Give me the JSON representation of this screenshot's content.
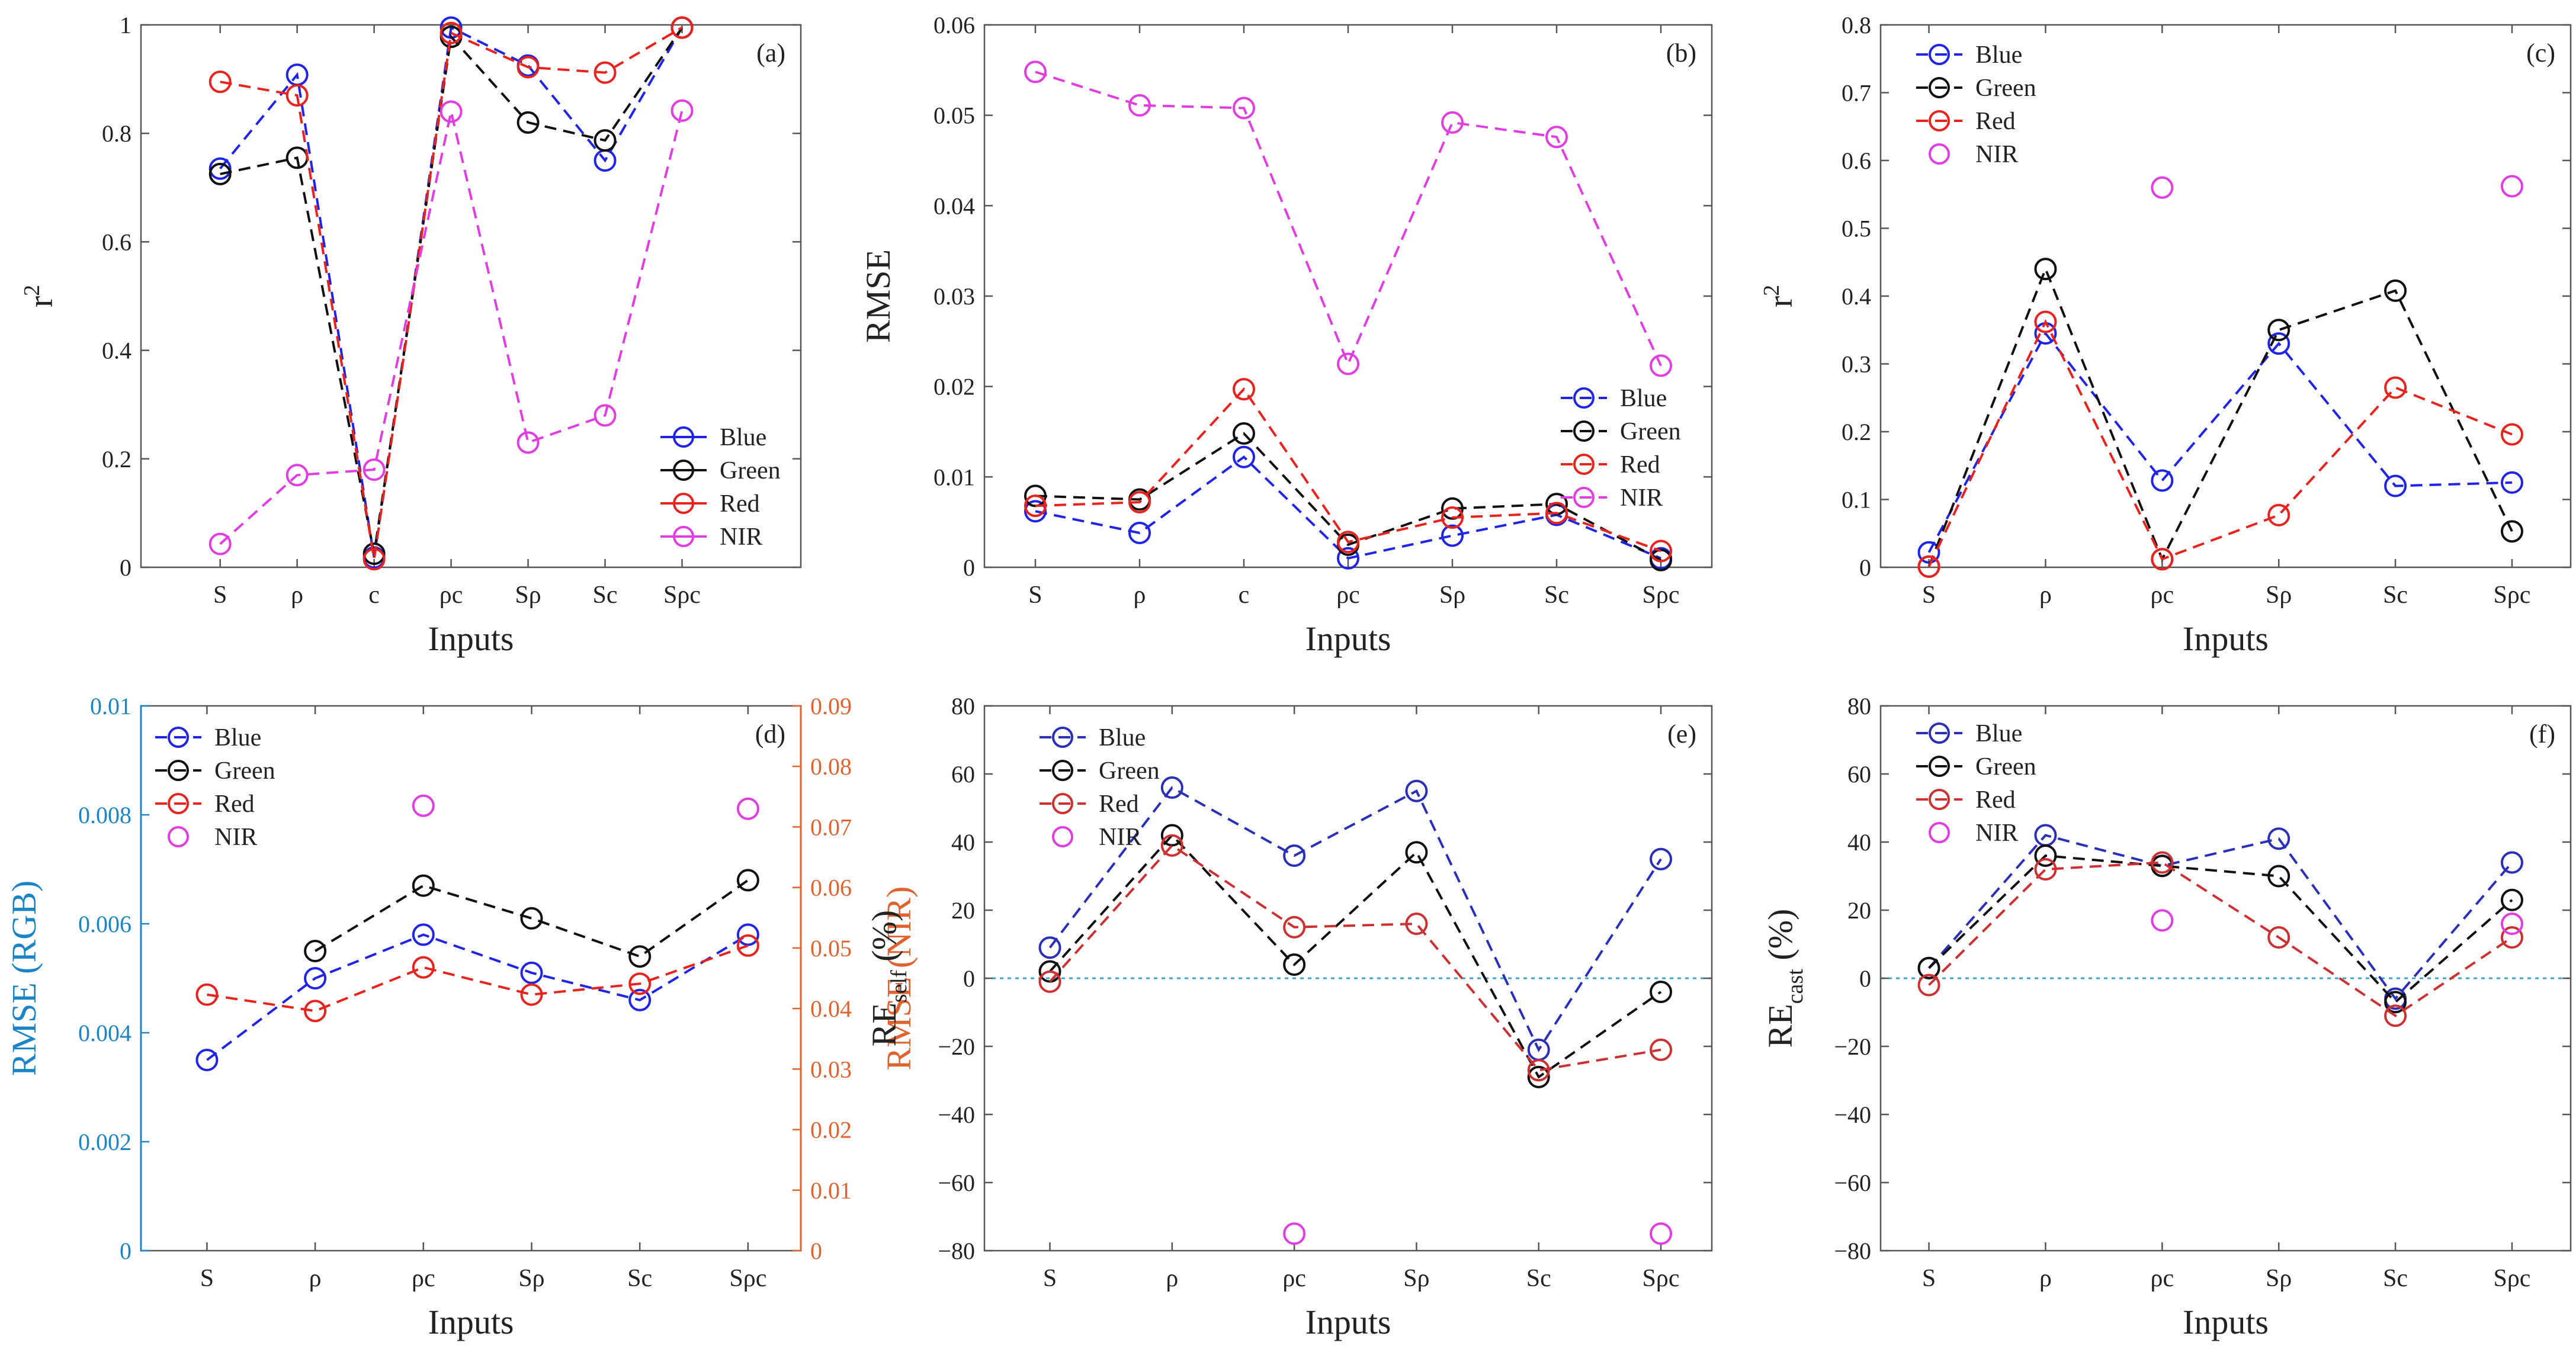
{
  "figure": {
    "background": "#ffffff",
    "axis_color": "#555555"
  },
  "colors": {
    "Blue": "#1f24e6",
    "Green": "#111111",
    "Red": "#e8231d",
    "NIR": "#e03ee0",
    "Blue_dark": "#2a2fb8",
    "Red_dark": "#cc3030",
    "axis_left_d": "#1a84c6",
    "axis_right_d": "#e0622e",
    "zero_line": "#3aa3d0"
  },
  "chart_data": [
    {
      "panel": "a",
      "label": "(a)",
      "type": "line",
      "categories": [
        "S",
        "ρ",
        "c",
        "ρc",
        "Sρ",
        "Sc",
        "Sρc"
      ],
      "xlabel": "Inputs",
      "ylabel": "r",
      "ylabel_sup": "2",
      "ylabel_sub": "",
      "ylim": [
        0,
        1
      ],
      "yticks": [
        0,
        0.2,
        0.4,
        0.6,
        0.8,
        1
      ],
      "yticklabels": [
        "0",
        "0.2",
        "0.4",
        "0.6",
        "0.8",
        "1"
      ],
      "legend": {
        "position": "bottom-right",
        "style": "solid",
        "entries": [
          "Blue",
          "Green",
          "Red",
          "NIR"
        ]
      },
      "series": [
        {
          "name": "Blue",
          "color": "Blue",
          "values": [
            0.735,
            0.908,
            0.018,
            0.995,
            0.925,
            0.75,
            0.995
          ]
        },
        {
          "name": "Green",
          "color": "Green",
          "values": [
            0.725,
            0.755,
            0.025,
            0.978,
            0.82,
            0.787,
            0.995
          ]
        },
        {
          "name": "Red",
          "color": "Red",
          "values": [
            0.895,
            0.87,
            0.015,
            0.985,
            0.922,
            0.912,
            0.995
          ]
        },
        {
          "name": "NIR",
          "color": "NIR",
          "values": [
            0.043,
            0.17,
            0.18,
            0.84,
            0.23,
            0.28,
            0.842
          ]
        }
      ]
    },
    {
      "panel": "b",
      "label": "(b)",
      "type": "line",
      "categories": [
        "S",
        "ρ",
        "c",
        "ρc",
        "Sρ",
        "Sc",
        "Sρc"
      ],
      "xlabel": "Inputs",
      "ylabel": "RMSE",
      "ylabel_sup": "",
      "ylabel_sub": "",
      "ylim": [
        0,
        0.06
      ],
      "yticks": [
        0,
        0.01,
        0.02,
        0.03,
        0.04,
        0.05,
        0.06
      ],
      "yticklabels": [
        "0",
        "0.01",
        "0.02",
        "0.03",
        "0.04",
        "0.05",
        "0.06"
      ],
      "legend": {
        "position": "lower-right",
        "style": "dashed",
        "entries": [
          "Blue",
          "Green",
          "Red",
          "NIR"
        ]
      },
      "series": [
        {
          "name": "Blue",
          "color": "Blue",
          "values": [
            0.0062,
            0.0038,
            0.0122,
            0.001,
            0.0035,
            0.0058,
            0.001
          ]
        },
        {
          "name": "Green",
          "color": "Green",
          "values": [
            0.0079,
            0.0075,
            0.0148,
            0.0025,
            0.0065,
            0.007,
            0.0008
          ]
        },
        {
          "name": "Red",
          "color": "Red",
          "values": [
            0.0068,
            0.0072,
            0.0197,
            0.0028,
            0.0055,
            0.006,
            0.0018
          ]
        },
        {
          "name": "NIR",
          "color": "NIR",
          "values": [
            0.0548,
            0.0511,
            0.0508,
            0.0225,
            0.0492,
            0.0476,
            0.0223
          ]
        }
      ]
    },
    {
      "panel": "c",
      "label": "(c)",
      "type": "line",
      "categories": [
        "S",
        "ρ",
        "ρc",
        "Sρ",
        "Sc",
        "Sρc"
      ],
      "xlabel": "Inputs",
      "ylabel": "r",
      "ylabel_sup": "2",
      "ylabel_sub": "",
      "ylim": [
        0,
        0.8
      ],
      "yticks": [
        0,
        0.1,
        0.2,
        0.3,
        0.4,
        0.5,
        0.6,
        0.7,
        0.8
      ],
      "yticklabels": [
        "0",
        "0.1",
        "0.2",
        "0.3",
        "0.4",
        "0.5",
        "0.6",
        "0.7",
        "0.8"
      ],
      "legend": {
        "position": "top-left",
        "style": "dashed",
        "entries": [
          "Blue",
          "Green",
          "Red",
          "NIR"
        ]
      },
      "series": [
        {
          "name": "Blue",
          "color": "Blue",
          "values": [
            0.022,
            0.345,
            0.128,
            0.33,
            0.12,
            0.125
          ]
        },
        {
          "name": "Green",
          "color": "Green",
          "values": [
            0.001,
            0.44,
            0.012,
            0.35,
            0.408,
            0.053
          ]
        },
        {
          "name": "Red",
          "color": "Red",
          "values": [
            0.001,
            0.362,
            0.012,
            0.077,
            0.265,
            0.196
          ]
        },
        {
          "name": "NIR",
          "color": "NIR",
          "marker_only": true,
          "values": [
            null,
            null,
            0.56,
            null,
            null,
            0.562
          ]
        }
      ]
    },
    {
      "panel": "d",
      "label": "(d)",
      "type": "line",
      "categories": [
        "S",
        "ρ",
        "ρc",
        "Sρ",
        "Sc",
        "Sρc"
      ],
      "xlabel": "Inputs",
      "ylabel": "RMSE (RGB)",
      "ylim": [
        0,
        0.01
      ],
      "yticks": [
        0,
        0.002,
        0.004,
        0.006,
        0.008,
        0.01
      ],
      "yticklabels": [
        "0",
        "0.002",
        "0.004",
        "0.006",
        "0.008",
        "0.01"
      ],
      "ylabel_right": "RMSE (NIR)",
      "ylim_right": [
        0,
        0.09
      ],
      "yticks_right": [
        0,
        0.01,
        0.02,
        0.03,
        0.04,
        0.05,
        0.06,
        0.07,
        0.08,
        0.09
      ],
      "yticklabels_right": [
        "0",
        "0.01",
        "0.02",
        "0.03",
        "0.04",
        "0.05",
        "0.06",
        "0.07",
        "0.08",
        "0.09"
      ],
      "legend": {
        "position": "top-left",
        "style": "dashed",
        "entries": [
          "Blue",
          "Green",
          "Red",
          "NIR"
        ]
      },
      "series": [
        {
          "name": "Blue",
          "color": "Blue",
          "axis": "left",
          "values": [
            0.0035,
            0.005,
            0.0058,
            0.0051,
            0.0046,
            0.0058
          ]
        },
        {
          "name": "Green",
          "color": "Green",
          "axis": "left",
          "values": [
            null,
            0.0055,
            0.0067,
            0.0061,
            0.0054,
            0.0068
          ]
        },
        {
          "name": "Red",
          "color": "Red",
          "axis": "left",
          "values": [
            0.0047,
            0.0044,
            0.0052,
            0.0047,
            0.0049,
            0.0056
          ]
        },
        {
          "name": "NIR",
          "color": "NIR",
          "axis": "right",
          "marker_only": true,
          "values": [
            null,
            null,
            0.0735,
            null,
            null,
            0.073
          ]
        }
      ]
    },
    {
      "panel": "e",
      "label": "(e)",
      "type": "line",
      "categories": [
        "S",
        "ρ",
        "ρc",
        "Sρ",
        "Sc",
        "Sρc"
      ],
      "xlabel": "Inputs",
      "ylabel": "RE",
      "ylabel_sup": "",
      "ylabel_sub": "self",
      "ylabel_suffix": " (%)",
      "ylim": [
        -80,
        80
      ],
      "yticks": [
        -80,
        -60,
        -40,
        -20,
        0,
        20,
        40,
        60,
        80
      ],
      "yticklabels": [
        "−80",
        "−60",
        "−40",
        "−20",
        "0",
        "20",
        "40",
        "60",
        "80"
      ],
      "zero_line": true,
      "legend": {
        "position": "top-left",
        "style": "dashed",
        "entries": [
          "Blue",
          "Green",
          "Red",
          "NIR"
        ]
      },
      "series": [
        {
          "name": "Blue",
          "color": "Blue_dark",
          "values": [
            9,
            56,
            36,
            55,
            -21,
            35
          ]
        },
        {
          "name": "Green",
          "color": "Green",
          "values": [
            2,
            42,
            4,
            37,
            -29,
            -4
          ]
        },
        {
          "name": "Red",
          "color": "Red_dark",
          "values": [
            -1,
            39,
            15,
            16,
            -27,
            -21
          ]
        },
        {
          "name": "NIR",
          "color": "NIR",
          "marker_only": true,
          "values": [
            null,
            null,
            -75,
            null,
            null,
            -75
          ]
        }
      ]
    },
    {
      "panel": "f",
      "label": "(f)",
      "type": "line",
      "categories": [
        "S",
        "ρ",
        "ρc",
        "Sρ",
        "Sc",
        "Sρc"
      ],
      "xlabel": "Inputs",
      "ylabel": "RE",
      "ylabel_sup": "",
      "ylabel_sub": "cast",
      "ylabel_suffix": " (%)",
      "ylim": [
        -80,
        80
      ],
      "yticks": [
        -80,
        -60,
        -40,
        -20,
        0,
        20,
        40,
        60,
        80
      ],
      "yticklabels": [
        "−80",
        "−60",
        "−40",
        "−20",
        "0",
        "20",
        "40",
        "60",
        "80"
      ],
      "zero_line": true,
      "legend": {
        "position": "top-left",
        "style": "dashed",
        "entries": [
          "Blue",
          "Green",
          "Red",
          "NIR"
        ]
      },
      "series": [
        {
          "name": "Blue",
          "color": "Blue_dark",
          "values": [
            3,
            42,
            33,
            41,
            -6,
            34
          ]
        },
        {
          "name": "Green",
          "color": "Green",
          "values": [
            3,
            36,
            33,
            30,
            -7,
            23
          ]
        },
        {
          "name": "Red",
          "color": "Red_dark",
          "values": [
            -2,
            32,
            34,
            12,
            -11,
            12
          ]
        },
        {
          "name": "NIR",
          "color": "NIR",
          "marker_only": true,
          "values": [
            null,
            null,
            17,
            null,
            null,
            16
          ]
        }
      ]
    }
  ]
}
